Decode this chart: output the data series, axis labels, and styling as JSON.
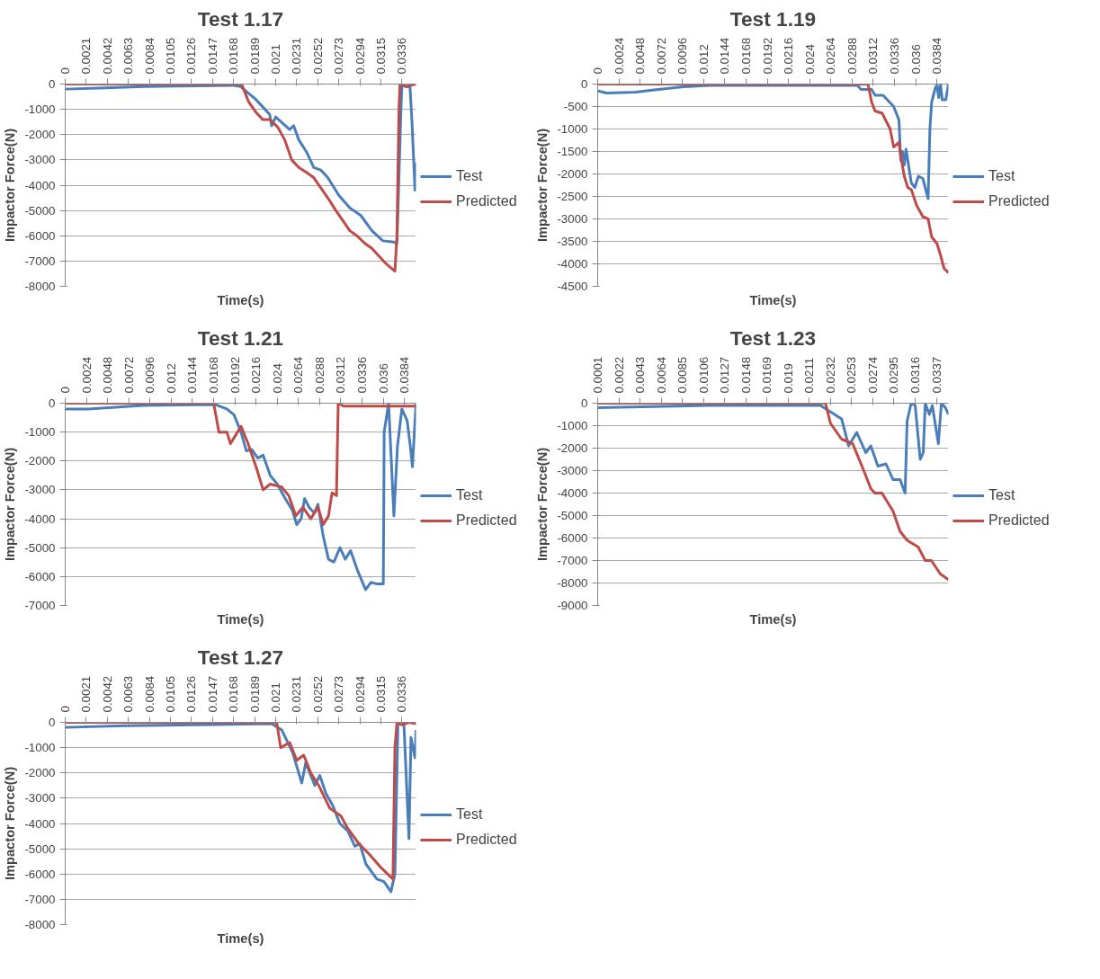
{
  "chart_data": [
    {
      "type": "line",
      "title": "Test 1.17",
      "xlabel": "Time(s)",
      "ylabel": "Impactor Force(N)",
      "xlim": [
        0,
        0.035
      ],
      "ylim": [
        -8000,
        0
      ],
      "xticks": [
        0,
        0.0021,
        0.0042,
        0.0063,
        0.0084,
        0.0105,
        0.0126,
        0.0147,
        0.0168,
        0.0189,
        0.021,
        0.0231,
        0.0252,
        0.0273,
        0.0294,
        0.0315,
        0.0336
      ],
      "yticks": [
        -8000,
        -7000,
        -6000,
        -5000,
        -4000,
        -3000,
        -2000,
        -1000,
        0
      ],
      "grid": "y",
      "legend": "right",
      "series": [
        {
          "name": "Test",
          "color": "#4a7ebb",
          "x": [
            0,
            0.004,
            0.008,
            0.0168,
            0.0175,
            0.019,
            0.0204,
            0.0206,
            0.021,
            0.0224,
            0.0228,
            0.0233,
            0.0241,
            0.0248,
            0.0255,
            0.0262,
            0.0273,
            0.0284,
            0.0295,
            0.0306,
            0.0317,
            0.0328,
            0.0331,
            0.0335,
            0.0336,
            0.034,
            0.0344,
            0.0346,
            0.0349,
            0.035
          ],
          "values": [
            -200,
            -150,
            -100,
            -50,
            -100,
            -600,
            -1200,
            -1650,
            -1300,
            -1800,
            -1650,
            -2200,
            -2700,
            -3300,
            -3400,
            -3700,
            -4400,
            -4900,
            -5200,
            -5800,
            -6200,
            -6250,
            -6300,
            -1000,
            0,
            -100,
            -100,
            -1500,
            -4200,
            -3100
          ]
        },
        {
          "name": "Predicted",
          "color": "#be4b48",
          "x": [
            0,
            0.0176,
            0.0183,
            0.019,
            0.0197,
            0.0204,
            0.0212,
            0.0219,
            0.0226,
            0.0233,
            0.0241,
            0.0248,
            0.0255,
            0.0262,
            0.027,
            0.0277,
            0.0284,
            0.0291,
            0.0299,
            0.0306,
            0.0313,
            0.032,
            0.0326,
            0.0329,
            0.0331,
            0.0333,
            0.0334,
            0.034,
            0.0345,
            0.035
          ],
          "values": [
            0,
            0,
            -700,
            -1100,
            -1400,
            -1400,
            -1700,
            -2200,
            -3000,
            -3300,
            -3500,
            -3700,
            -4100,
            -4500,
            -5000,
            -5400,
            -5800,
            -6000,
            -6300,
            -6500,
            -6800,
            -7100,
            -7300,
            -7400,
            -6000,
            -1000,
            0,
            -100,
            -50,
            0
          ]
        }
      ]
    },
    {
      "type": "line",
      "title": "Test 1.19",
      "xlabel": "Time(s)",
      "ylabel": "Impactor Force(N)",
      "xlim": [
        0,
        0.0397
      ],
      "ylim": [
        -4500,
        0
      ],
      "xticks": [
        0,
        0.0024,
        0.0048,
        0.0072,
        0.0096,
        0.012,
        0.0144,
        0.0168,
        0.0192,
        0.0216,
        0.024,
        0.0264,
        0.0288,
        0.0312,
        0.0336,
        0.036,
        0.0384
      ],
      "yticks": [
        -4500,
        -4000,
        -3500,
        -3000,
        -2500,
        -2000,
        -1500,
        -1000,
        -500,
        0
      ],
      "grid": "y",
      "legend": "right",
      "series": [
        {
          "name": "Test",
          "color": "#4a7ebb",
          "x": [
            0,
            0.001,
            0.0043,
            0.0064,
            0.0097,
            0.0126,
            0.0294,
            0.0298,
            0.031,
            0.0314,
            0.0323,
            0.0335,
            0.0341,
            0.0343,
            0.0345,
            0.0347,
            0.0349,
            0.0351,
            0.0355,
            0.0359,
            0.0363,
            0.0368,
            0.0374,
            0.0376,
            0.0378,
            0.0382,
            0.0384,
            0.0386,
            0.0388,
            0.039,
            0.0394,
            0.0397
          ],
          "values": [
            -150,
            -200,
            -180,
            -130,
            -60,
            -30,
            -30,
            -120,
            -120,
            -250,
            -250,
            -500,
            -800,
            -1700,
            -1500,
            -1800,
            -1450,
            -1700,
            -2200,
            -2300,
            -2050,
            -2100,
            -2550,
            -1000,
            -400,
            -100,
            -20,
            -300,
            0,
            -350,
            -350,
            0
          ]
        },
        {
          "name": "Predicted",
          "color": "#be4b48",
          "x": [
            0,
            0.0306,
            0.031,
            0.0314,
            0.0322,
            0.0331,
            0.0335,
            0.0341,
            0.0343,
            0.0347,
            0.0351,
            0.0355,
            0.0361,
            0.0368,
            0.0374,
            0.0378,
            0.0384,
            0.0388,
            0.0392,
            0.0397
          ],
          "values": [
            0,
            0,
            -400,
            -600,
            -650,
            -1000,
            -1400,
            -1300,
            -1600,
            -2050,
            -2300,
            -2350,
            -2700,
            -2950,
            -3000,
            -3400,
            -3550,
            -3800,
            -4100,
            -4200
          ]
        }
      ]
    },
    {
      "type": "line",
      "title": "Test 1.21",
      "xlabel": "Time(s)",
      "ylabel": "Impactor Force(N)",
      "xlim": [
        0,
        0.0397
      ],
      "ylim": [
        -7000,
        0
      ],
      "xticks": [
        0,
        0.0024,
        0.0048,
        0.0072,
        0.0096,
        0.012,
        0.0144,
        0.0168,
        0.0192,
        0.0216,
        0.024,
        0.0264,
        0.0288,
        0.0312,
        0.0336,
        0.036,
        0.0384
      ],
      "yticks": [
        -7000,
        -6000,
        -5000,
        -4000,
        -3000,
        -2000,
        -1000,
        0
      ],
      "grid": "y",
      "legend": "right",
      "series": [
        {
          "name": "Test",
          "color": "#4a7ebb",
          "x": [
            0,
            0.0026,
            0.0088,
            0.017,
            0.0183,
            0.0191,
            0.0199,
            0.0205,
            0.0211,
            0.0218,
            0.0224,
            0.0232,
            0.024,
            0.0249,
            0.0257,
            0.0262,
            0.0267,
            0.0271,
            0.0276,
            0.0282,
            0.0286,
            0.0292,
            0.0298,
            0.0304,
            0.0311,
            0.0317,
            0.0323,
            0.0331,
            0.034,
            0.0346,
            0.0352,
            0.036,
            0.0361,
            0.0366,
            0.0372,
            0.0376,
            0.0381,
            0.0387,
            0.0391,
            0.0393,
            0.0397
          ],
          "values": [
            -200,
            -200,
            -80,
            -50,
            -200,
            -400,
            -1000,
            -1650,
            -1600,
            -1900,
            -1800,
            -2500,
            -2800,
            -3300,
            -3700,
            -4200,
            -4000,
            -3300,
            -3600,
            -3800,
            -3500,
            -4600,
            -5400,
            -5500,
            -5000,
            -5400,
            -5100,
            -5800,
            -6450,
            -6200,
            -6250,
            -6250,
            -1000,
            0,
            -3900,
            -1500,
            -200,
            -600,
            -1600,
            -2200,
            0
          ]
        },
        {
          "name": "Predicted",
          "color": "#be4b48",
          "x": [
            0,
            0.0168,
            0.0174,
            0.0183,
            0.0187,
            0.0193,
            0.0199,
            0.0207,
            0.0216,
            0.0224,
            0.0232,
            0.0245,
            0.0253,
            0.0261,
            0.0269,
            0.0278,
            0.0286,
            0.0292,
            0.0298,
            0.0302,
            0.0307,
            0.0309,
            0.0315,
            0.0397
          ],
          "values": [
            0,
            0,
            -1000,
            -1000,
            -1400,
            -1100,
            -800,
            -1400,
            -2200,
            -3000,
            -2800,
            -2900,
            -3200,
            -3900,
            -3600,
            -4000,
            -3600,
            -4200,
            -3900,
            -3100,
            -3200,
            0,
            -100,
            -100
          ]
        }
      ]
    },
    {
      "type": "line",
      "title": "Test 1.23",
      "xlabel": "Time(s)",
      "ylabel": "Impactor Force(N)",
      "xlim": [
        0.0001,
        0.0349
      ],
      "ylim": [
        -9000,
        0
      ],
      "xticks": [
        0.0001,
        0.0022,
        0.0043,
        0.0064,
        0.0085,
        0.0106,
        0.0127,
        0.0148,
        0.0169,
        0.019,
        0.0211,
        0.0232,
        0.0253,
        0.0274,
        0.0295,
        0.0316,
        0.0337
      ],
      "yticks": [
        -9000,
        -8000,
        -7000,
        -6000,
        -5000,
        -4000,
        -3000,
        -2000,
        -1000,
        0
      ],
      "grid": "y",
      "legend": "right",
      "series": [
        {
          "name": "Test",
          "color": "#4a7ebb",
          "x": [
            0.0001,
            0.0056,
            0.011,
            0.0222,
            0.0229,
            0.0243,
            0.025,
            0.0258,
            0.0267,
            0.0272,
            0.0279,
            0.0287,
            0.0294,
            0.0301,
            0.0306,
            0.0308,
            0.0312,
            0.0316,
            0.0321,
            0.0324,
            0.0326,
            0.033,
            0.0333,
            0.0339,
            0.0342,
            0.0346,
            0.0349
          ],
          "values": [
            -200,
            -150,
            -100,
            -100,
            -300,
            -700,
            -1900,
            -1300,
            -2200,
            -1900,
            -2800,
            -2700,
            -3400,
            -3400,
            -4000,
            -800,
            0,
            -100,
            -2500,
            -2200,
            0,
            -500,
            -100,
            -1800,
            0,
            -200,
            -500
          ]
        },
        {
          "name": "Predicted",
          "color": "#be4b48",
          "x": [
            0.0001,
            0.0227,
            0.0232,
            0.0243,
            0.0254,
            0.0265,
            0.0272,
            0.0276,
            0.0283,
            0.0294,
            0.0301,
            0.0308,
            0.0319,
            0.0326,
            0.0332,
            0.0341,
            0.0349
          ],
          "values": [
            0,
            0,
            -900,
            -1600,
            -1800,
            -3000,
            -3800,
            -4000,
            -4000,
            -4800,
            -5700,
            -6100,
            -6400,
            -7000,
            -7000,
            -7600,
            -7850
          ]
        }
      ]
    },
    {
      "type": "line",
      "title": "Test 1.27",
      "xlabel": "Time(s)",
      "ylabel": "Impactor Force(N)",
      "xlim": [
        0,
        0.035
      ],
      "ylim": [
        -8000,
        0
      ],
      "xticks": [
        0,
        0.0021,
        0.0042,
        0.0063,
        0.0084,
        0.0105,
        0.0126,
        0.0147,
        0.0168,
        0.0189,
        0.021,
        0.0231,
        0.0252,
        0.0273,
        0.0294,
        0.0315,
        0.0336
      ],
      "yticks": [
        -8000,
        -7000,
        -6000,
        -5000,
        -4000,
        -3000,
        -2000,
        -1000,
        0
      ],
      "grid": "y",
      "legend": "right",
      "series": [
        {
          "name": "Test",
          "color": "#4a7ebb",
          "x": [
            0,
            0.006,
            0.0133,
            0.0206,
            0.0216,
            0.0227,
            0.0233,
            0.0236,
            0.024,
            0.0249,
            0.0254,
            0.026,
            0.0267,
            0.0274,
            0.0282,
            0.0289,
            0.0294,
            0.03,
            0.0311,
            0.0318,
            0.0325,
            0.0329,
            0.0332,
            0.0338,
            0.0343,
            0.0345,
            0.0349,
            0.035
          ],
          "values": [
            -200,
            -130,
            -100,
            -50,
            -300,
            -1200,
            -2000,
            -2400,
            -1600,
            -2500,
            -2100,
            -2800,
            -3300,
            -4000,
            -4300,
            -4900,
            -4800,
            -5600,
            -6200,
            -6300,
            -6700,
            -6000,
            0,
            -100,
            -4600,
            -600,
            -1400,
            -300
          ]
        },
        {
          "name": "Predicted",
          "color": "#be4b48",
          "x": [
            0,
            0.0211,
            0.0215,
            0.0224,
            0.0231,
            0.0238,
            0.0245,
            0.0253,
            0.0264,
            0.0275,
            0.0282,
            0.0293,
            0.0303,
            0.0314,
            0.0327,
            0.0329,
            0.0331,
            0.0336,
            0.0343,
            0.035
          ],
          "values": [
            0,
            0,
            -1000,
            -800,
            -1500,
            -1300,
            -2000,
            -2500,
            -3400,
            -3700,
            -4200,
            -4800,
            -5200,
            -5700,
            -6200,
            -1000,
            0,
            -100,
            0,
            -50
          ]
        }
      ]
    }
  ]
}
